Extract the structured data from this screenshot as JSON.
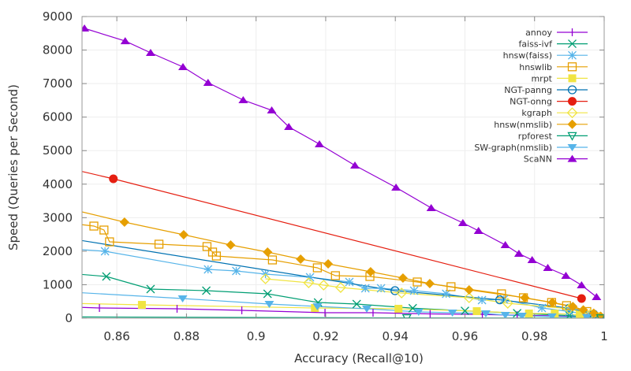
{
  "chart_data": {
    "type": "line",
    "title": "",
    "xlabel": "Accuracy (Recall@10)",
    "ylabel": "Speed (Queries per Second)",
    "xlim": [
      0.85,
      1.0
    ],
    "ylim": [
      0,
      9000
    ],
    "xticks": [
      0.86,
      0.88,
      0.9,
      0.92,
      0.94,
      0.96,
      0.98,
      1.0
    ],
    "xtick_labels": [
      "0.86",
      "0.88",
      "0.9",
      "0.92",
      "0.94",
      "0.96",
      "0.98",
      "1"
    ],
    "yticks": [
      0,
      1000,
      2000,
      3000,
      4000,
      5000,
      6000,
      7000,
      8000,
      9000
    ],
    "ytick_labels": [
      "0",
      "1000",
      "2000",
      "3000",
      "4000",
      "5000",
      "6000",
      "7000",
      "8000",
      "9000"
    ],
    "grid": true,
    "legend_position": "top-right",
    "series": [
      {
        "name": "annoy",
        "color": "#9400d3",
        "marker": "plus",
        "x": [
          0.845,
          0.855,
          0.8773,
          0.8959,
          0.9198,
          0.9336,
          0.95,
          0.965,
          0.975,
          0.985,
          0.995
        ],
        "y": [
          340,
          305,
          282,
          235,
          164,
          164,
          130,
          110,
          90,
          70,
          40
        ]
      },
      {
        "name": "faiss-ivf",
        "color": "#009e73",
        "marker": "x",
        "x": [
          0.845,
          0.857,
          0.8697,
          0.8857,
          0.9033,
          0.9178,
          0.9289,
          0.945,
          0.96,
          0.975,
          0.99,
          0.998
        ],
        "y": [
          1350,
          1245,
          869,
          822,
          728,
          470,
          423,
          300,
          220,
          150,
          80,
          20
        ]
      },
      {
        "name": "hnsw(faiss)",
        "color": "#56b4e9",
        "marker": "star",
        "x": [
          0.845,
          0.8566,
          0.8862,
          0.8943,
          0.9027,
          0.9155,
          0.9268,
          0.9314,
          0.9359,
          0.9454,
          0.9546,
          0.9649,
          0.9712,
          0.9821,
          0.99,
          0.996
        ],
        "y": [
          2080,
          1997,
          1457,
          1410,
          1316,
          1222,
          1081,
          893,
          893,
          822,
          728,
          540,
          564,
          305,
          200,
          100
        ]
      },
      {
        "name": "hnswlib",
        "color": "#e69f00",
        "marker": "open-square",
        "x": [
          0.845,
          0.8534,
          0.8563,
          0.8579,
          0.8721,
          0.8859,
          0.8875,
          0.8886,
          0.9047,
          0.9176,
          0.9228,
          0.9327,
          0.9463,
          0.956,
          0.9705,
          0.9768,
          0.9849,
          0.9892,
          0.995
        ],
        "y": [
          2850,
          2749,
          2631,
          2279,
          2209,
          2138,
          1974,
          1856,
          1739,
          1504,
          1269,
          1245,
          1081,
          940,
          728,
          611,
          470,
          376,
          200
        ]
      },
      {
        "name": "mrpt",
        "color": "#f0e442",
        "marker": "filled-square",
        "x": [
          0.845,
          0.8672,
          0.9169,
          0.9409,
          0.9634,
          0.9784,
          0.9858,
          0.993,
          0.998
        ],
        "y": [
          450,
          399,
          305,
          282,
          211,
          141,
          141,
          100,
          60
        ]
      },
      {
        "name": "NGT-panng",
        "color": "#0072b2",
        "marker": "open-circle",
        "x": [
          0.845,
          0.9399,
          0.97,
          0.99,
          0.997
        ],
        "y": [
          2400,
          822,
          550,
          300,
          120
        ]
      },
      {
        "name": "NGT-onng",
        "color": "#e51e10",
        "marker": "filled-circle",
        "x": [
          0.845,
          0.859,
          0.9935
        ],
        "y": [
          4500,
          4159,
          587
        ]
      },
      {
        "name": "kgraph",
        "color": "#f0e442",
        "marker": "open-diamond",
        "x": [
          0.9027,
          0.9151,
          0.9194,
          0.9243,
          0.9418,
          0.9612,
          0.9723,
          0.9899,
          0.996
        ],
        "y": [
          1175,
          1057,
          987,
          916,
          752,
          611,
          446,
          282,
          120
        ]
      },
      {
        "name": "hnsw(nmslib)",
        "color": "#e69f00",
        "marker": "filled-diamond",
        "x": [
          0.845,
          0.8622,
          0.8792,
          0.8927,
          0.9033,
          0.9128,
          0.9207,
          0.9329,
          0.9422,
          0.9499,
          0.9612,
          0.9772,
          0.9851,
          0.991,
          0.994,
          0.997,
          0.999
        ],
        "y": [
          3300,
          2866,
          2490,
          2185,
          1974,
          1762,
          1621,
          1386,
          1198,
          1034,
          846,
          611,
          470,
          350,
          250,
          150,
          60
        ]
      },
      {
        "name": "rpforest",
        "color": "#009e73",
        "marker": "open-triangle-down",
        "x": [
          0.845,
          0.9433,
          0.999
        ],
        "y": [
          40,
          10,
          5
        ]
      },
      {
        "name": "SW-graph(nmslib)",
        "color": "#56b4e9",
        "marker": "filled-triangle-down",
        "x": [
          0.845,
          0.8789,
          0.9038,
          0.9176,
          0.9318,
          0.9467,
          0.9564,
          0.966,
          0.9716,
          0.9764,
          0.985,
          0.995
        ],
        "y": [
          790,
          587,
          423,
          352,
          282,
          188,
          164,
          141,
          94,
          70,
          50,
          30
        ]
      },
      {
        "name": "ScaNN",
        "color": "#9400d3",
        "marker": "filled-triangle-up",
        "x": [
          0.8507,
          0.8624,
          0.8697,
          0.879,
          0.8862,
          0.8963,
          0.9045,
          0.9094,
          0.9182,
          0.9284,
          0.9402,
          0.9503,
          0.9594,
          0.9639,
          0.9716,
          0.9755,
          0.9793,
          0.9838,
          0.989,
          0.9935,
          0.9978
        ],
        "y": [
          8647,
          8270,
          7918,
          7495,
          7025,
          6508,
          6203,
          5709,
          5193,
          4558,
          3900,
          3289,
          2843,
          2608,
          2185,
          1927,
          1739,
          1504,
          1269,
          987,
          634
        ]
      }
    ]
  }
}
